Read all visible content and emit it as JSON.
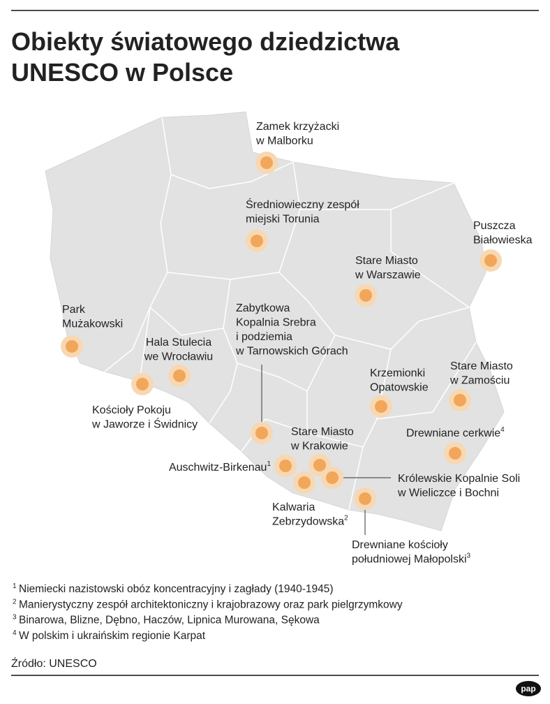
{
  "header": {
    "title_lines": [
      "Obiekty światowego dziedzictwa",
      "UNESCO w Polsce"
    ]
  },
  "sites": [
    {
      "label_lines": [
        "Zamek krzyżacki",
        "w Malborku"
      ]
    },
    {
      "label_lines": [
        "Średniowieczny zespół",
        "miejski Torunia"
      ]
    },
    {
      "label_lines": [
        "Puszcza",
        "Białowieska"
      ]
    },
    {
      "label_lines": [
        "Stare Miasto",
        "w Warszawie"
      ]
    },
    {
      "label_lines": [
        "Park",
        "Mużakowski"
      ]
    },
    {
      "label_lines": [
        "Zabytkowa",
        "Kopalnia Srebra",
        "i podziemia",
        "w Tarnowskich Górach"
      ]
    },
    {
      "label_lines": [
        "Hala Stulecia",
        "we Wrocławiu"
      ]
    },
    {
      "label_lines": [
        "Kościoły Pokoju",
        "w Jaworze i Świdnicy"
      ]
    },
    {
      "label_lines": [
        "Krzemionki",
        "Opatowskie"
      ]
    },
    {
      "label_lines": [
        "Stare Miasto",
        "w Zamościu"
      ]
    },
    {
      "label_lines": [
        "Drewniane cerkwie"
      ],
      "note": "4"
    },
    {
      "label_lines": [
        "Stare Miasto",
        "w Krakowie"
      ]
    },
    {
      "label_lines": [
        "Auschwitz-Birkenau"
      ],
      "note": "1"
    },
    {
      "label_lines": [
        "Królewskie Kopalnie Soli",
        "w Wieliczce i Bochni"
      ]
    },
    {
      "label_lines": [
        "Kalwaria",
        "Zebrzydowska"
      ],
      "note": "2"
    },
    {
      "label_lines": [
        "Drewniane kościoły",
        "południowej Małopolski"
      ],
      "note": "3"
    }
  ],
  "footnotes": [
    {
      "mark": "1",
      "text": "Niemiecki nazistowski obóz koncentracyjny i zagłady (1940-1945)"
    },
    {
      "mark": "2",
      "text": "Manierystyczny zespół architektoniczny i krajobrazowy oraz park pielgrzymkowy"
    },
    {
      "mark": "3",
      "text": "Binarowa, Blizne, Dębno, Haczów, Lipnica Murowana, Sękowa"
    },
    {
      "mark": "4",
      "text": "W polskim i ukraińskim regionie Karpat"
    }
  ],
  "source": "Źródło: UNESCO",
  "logo": "pap"
}
